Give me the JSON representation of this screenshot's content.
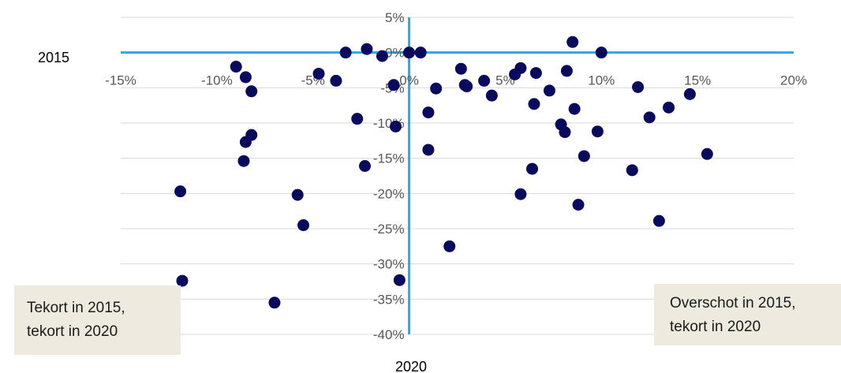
{
  "chart_data": {
    "type": "scatter",
    "xlabel": "2020",
    "ylabel": "2015",
    "xlim": [
      -15,
      20
    ],
    "ylim": [
      -40,
      5
    ],
    "x_ticks": [
      -15,
      -10,
      -5,
      0,
      5,
      10,
      15,
      20
    ],
    "y_ticks": [
      5,
      0,
      -5,
      -10,
      -15,
      -20,
      -25,
      -30,
      -35,
      -40
    ],
    "x_tick_labels": [
      "-15%",
      "-10%",
      "-5%",
      "0%",
      "5%",
      "10%",
      "15%",
      "20%"
    ],
    "y_tick_labels": [
      "5%",
      "0%",
      "-5%",
      "-10%",
      "-15%",
      "-20%",
      "-25%",
      "-30%",
      "-35%",
      "-40%"
    ],
    "grid": true,
    "colors": {
      "marker": "#0a0a5c",
      "zero_axis": "#29abe2",
      "grid": "#d9d9d9"
    },
    "points": [
      [
        -9.0,
        -2.0
      ],
      [
        -8.5,
        -3.5
      ],
      [
        -8.2,
        -5.5
      ],
      [
        -8.2,
        -11.7
      ],
      [
        -8.5,
        -12.7
      ],
      [
        -8.6,
        -15.4
      ],
      [
        -11.9,
        -19.7
      ],
      [
        -11.8,
        -32.4
      ],
      [
        -7.0,
        -35.5
      ],
      [
        -5.8,
        -20.2
      ],
      [
        -5.5,
        -24.5
      ],
      [
        -4.7,
        -3.0
      ],
      [
        -3.8,
        -4.0
      ],
      [
        -3.3,
        0.0
      ],
      [
        -2.7,
        -9.4
      ],
      [
        -2.3,
        -16.1
      ],
      [
        -2.2,
        0.5
      ],
      [
        -1.4,
        -0.5
      ],
      [
        -0.8,
        -4.6
      ],
      [
        -0.7,
        -10.5
      ],
      [
        -0.5,
        -32.3
      ],
      [
        0.0,
        0.0
      ],
      [
        0.6,
        0.0
      ],
      [
        1.0,
        -8.5
      ],
      [
        1.0,
        -13.8
      ],
      [
        1.4,
        -5.1
      ],
      [
        2.1,
        -27.5
      ],
      [
        2.7,
        -2.3
      ],
      [
        2.9,
        -4.6
      ],
      [
        3.0,
        -4.8
      ],
      [
        3.9,
        -4.0
      ],
      [
        4.3,
        -6.1
      ],
      [
        5.5,
        -3.1
      ],
      [
        5.8,
        -2.2
      ],
      [
        5.8,
        -20.1
      ],
      [
        6.4,
        -16.5
      ],
      [
        6.5,
        -7.3
      ],
      [
        6.6,
        -2.9
      ],
      [
        7.3,
        -5.4
      ],
      [
        7.9,
        -10.2
      ],
      [
        8.1,
        -11.3
      ],
      [
        8.2,
        -2.6
      ],
      [
        8.5,
        1.5
      ],
      [
        8.6,
        -8.0
      ],
      [
        8.8,
        -21.6
      ],
      [
        9.1,
        -14.7
      ],
      [
        9.8,
        -11.2
      ],
      [
        10.0,
        0.0
      ],
      [
        11.6,
        -16.7
      ],
      [
        11.9,
        -4.9
      ],
      [
        12.5,
        -9.2
      ],
      [
        13.0,
        -23.9
      ],
      [
        13.5,
        -7.8
      ],
      [
        14.6,
        -5.9
      ],
      [
        15.5,
        -14.4
      ]
    ]
  },
  "annotations": {
    "left_lines": [
      "Tekort in 2015,",
      "tekort in 2020"
    ],
    "right_lines": [
      "Overschot in 2015,",
      "tekort in 2020"
    ]
  }
}
